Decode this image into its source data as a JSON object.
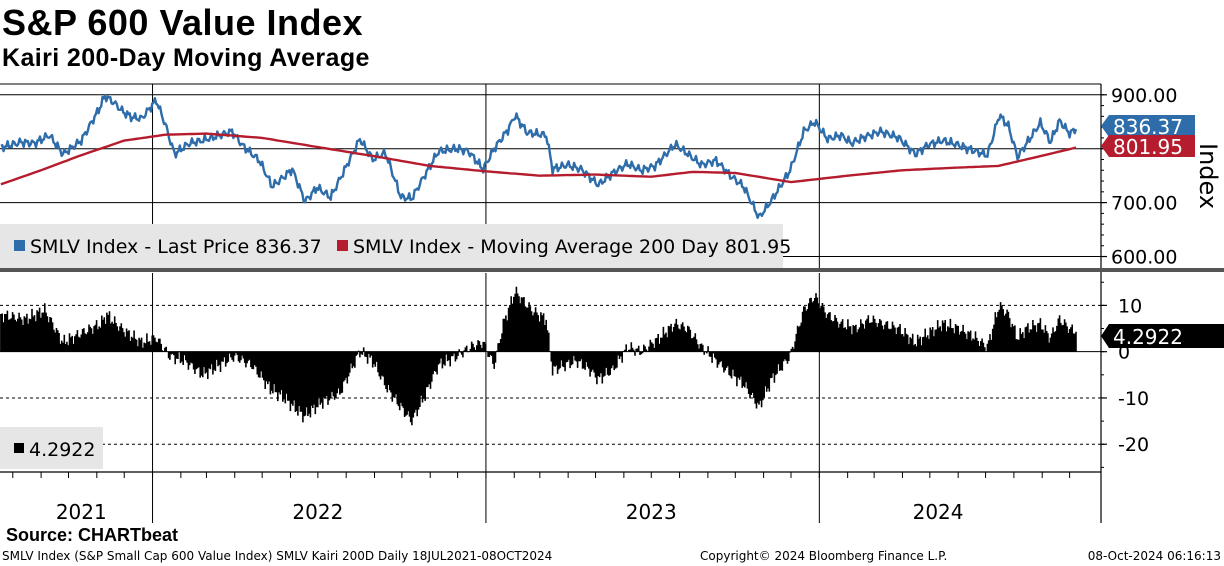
{
  "header": {
    "title": "S&P 600 Value Index",
    "subtitle": "Kairi 200-Day Moving Average"
  },
  "colors": {
    "price": "#2e6da9",
    "moving_average": "#b51c2e",
    "kairi": "#000000",
    "grid": "#000000",
    "legend_bg": "#e6e6e6"
  },
  "chart_data": [
    {
      "type": "line",
      "title": "",
      "ylabel": "Index",
      "ylim": [
        575,
        920
      ],
      "y_ticks": [
        600,
        700,
        800,
        900
      ],
      "y_tick_labels": [
        "600.00",
        "700.00",
        "800.00",
        "900.00"
      ],
      "x_range": [
        "2021-07-18",
        "2024-10-08"
      ],
      "grid": true,
      "legend_position": "bottom-left",
      "series": [
        {
          "name": "SMLV Index - Last Price 836.37",
          "role": "price",
          "last_label": "836.37",
          "points": [
            [
              "2021-07-19",
              802
            ],
            [
              "2021-08-10",
              812
            ],
            [
              "2021-08-25",
              810
            ],
            [
              "2021-09-10",
              825
            ],
            [
              "2021-09-25",
              790
            ],
            [
              "2021-10-15",
              815
            ],
            [
              "2021-11-03",
              872
            ],
            [
              "2021-11-10",
              898
            ],
            [
              "2021-11-20",
              885
            ],
            [
              "2021-11-30",
              868
            ],
            [
              "2021-12-10",
              858
            ],
            [
              "2021-12-20",
              856
            ],
            [
              "2022-01-05",
              890
            ],
            [
              "2022-01-15",
              845
            ],
            [
              "2022-01-25",
              790
            ],
            [
              "2022-02-10",
              810
            ],
            [
              "2022-02-24",
              815
            ],
            [
              "2022-03-10",
              822
            ],
            [
              "2022-03-29",
              832
            ],
            [
              "2022-04-10",
              805
            ],
            [
              "2022-04-28",
              778
            ],
            [
              "2022-05-12",
              730
            ],
            [
              "2022-05-25",
              748
            ],
            [
              "2022-06-03",
              762
            ],
            [
              "2022-06-17",
              702
            ],
            [
              "2022-06-30",
              728
            ],
            [
              "2022-07-15",
              710
            ],
            [
              "2022-07-30",
              760
            ],
            [
              "2022-08-16",
              818
            ],
            [
              "2022-08-30",
              780
            ],
            [
              "2022-09-13",
              792
            ],
            [
              "2022-09-30",
              710
            ],
            [
              "2022-10-12",
              708
            ],
            [
              "2022-10-25",
              748
            ],
            [
              "2022-11-10",
              795
            ],
            [
              "2022-11-30",
              800
            ],
            [
              "2022-12-13",
              795
            ],
            [
              "2022-12-29",
              762
            ],
            [
              "2023-01-10",
              800
            ],
            [
              "2023-01-25",
              835
            ],
            [
              "2023-02-02",
              862
            ],
            [
              "2023-02-15",
              830
            ],
            [
              "2023-03-08",
              825
            ],
            [
              "2023-03-15",
              762
            ],
            [
              "2023-03-31",
              770
            ],
            [
              "2023-04-15",
              762
            ],
            [
              "2023-05-04",
              733
            ],
            [
              "2023-05-20",
              755
            ],
            [
              "2023-06-05",
              772
            ],
            [
              "2023-06-20",
              760
            ],
            [
              "2023-07-05",
              768
            ],
            [
              "2023-07-27",
              808
            ],
            [
              "2023-08-10",
              790
            ],
            [
              "2023-08-25",
              770
            ],
            [
              "2023-09-10",
              778
            ],
            [
              "2023-09-27",
              748
            ],
            [
              "2023-10-10",
              730
            ],
            [
              "2023-10-27",
              672
            ],
            [
              "2023-11-10",
              705
            ],
            [
              "2023-11-30",
              760
            ],
            [
              "2023-12-15",
              832
            ],
            [
              "2023-12-27",
              850
            ],
            [
              "2024-01-10",
              818
            ],
            [
              "2024-01-25",
              825
            ],
            [
              "2024-02-05",
              810
            ],
            [
              "2024-02-20",
              822
            ],
            [
              "2024-03-08",
              832
            ],
            [
              "2024-03-28",
              820
            ],
            [
              "2024-04-15",
              790
            ],
            [
              "2024-04-30",
              808
            ],
            [
              "2024-05-15",
              815
            ],
            [
              "2024-05-30",
              808
            ],
            [
              "2024-06-15",
              798
            ],
            [
              "2024-07-03",
              788
            ],
            [
              "2024-07-16",
              862
            ],
            [
              "2024-07-26",
              842
            ],
            [
              "2024-08-05",
              785
            ],
            [
              "2024-08-15",
              810
            ],
            [
              "2024-08-30",
              848
            ],
            [
              "2024-09-10",
              812
            ],
            [
              "2024-09-20",
              852
            ],
            [
              "2024-10-01",
              828
            ],
            [
              "2024-10-08",
              836.37
            ]
          ]
        },
        {
          "name": "SMLV Index - Moving Average 200 Day 801.95",
          "role": "moving_average",
          "last_label": "801.95",
          "points": [
            [
              "2021-07-19",
              734
            ],
            [
              "2021-09-01",
              760
            ],
            [
              "2021-10-15",
              788
            ],
            [
              "2021-12-01",
              815
            ],
            [
              "2022-01-15",
              826
            ],
            [
              "2022-03-01",
              828
            ],
            [
              "2022-05-01",
              820
            ],
            [
              "2022-07-01",
              803
            ],
            [
              "2022-09-01",
              786
            ],
            [
              "2022-11-01",
              768
            ],
            [
              "2023-01-01",
              758
            ],
            [
              "2023-03-01",
              750
            ],
            [
              "2023-05-01",
              752
            ],
            [
              "2023-07-01",
              748
            ],
            [
              "2023-08-15",
              757
            ],
            [
              "2023-10-01",
              755
            ],
            [
              "2023-12-01",
              738
            ],
            [
              "2024-02-01",
              750
            ],
            [
              "2024-04-01",
              760
            ],
            [
              "2024-06-01",
              765
            ],
            [
              "2024-07-15",
              768
            ],
            [
              "2024-09-01",
              787
            ],
            [
              "2024-10-08",
              801.95
            ]
          ]
        }
      ]
    },
    {
      "type": "bar",
      "title": "",
      "ylabel": "",
      "ylim": [
        -26,
        17
      ],
      "y_ticks": [
        -20,
        -10,
        0,
        10
      ],
      "y_tick_labels": [
        "-20",
        "-10",
        "0",
        "10"
      ],
      "x_range": [
        "2021-07-18",
        "2024-10-08"
      ],
      "grid": true,
      "legend_position": "bottom-left",
      "series": [
        {
          "name": "4.2922",
          "role": "kairi",
          "last_label": "4.2922",
          "points": [
            [
              "2021-07-19",
              8
            ],
            [
              "2021-08-15",
              7
            ],
            [
              "2021-09-05",
              9
            ],
            [
              "2021-09-25",
              2
            ],
            [
              "2021-10-15",
              4
            ],
            [
              "2021-11-05",
              6
            ],
            [
              "2021-11-12",
              8
            ],
            [
              "2021-11-22",
              6
            ],
            [
              "2021-12-05",
              4
            ],
            [
              "2021-12-20",
              2
            ],
            [
              "2022-01-05",
              3
            ],
            [
              "2022-01-20",
              -1
            ],
            [
              "2022-02-05",
              -2
            ],
            [
              "2022-02-25",
              -5
            ],
            [
              "2022-03-15",
              -3
            ],
            [
              "2022-04-01",
              -1
            ],
            [
              "2022-04-20",
              -3
            ],
            [
              "2022-05-10",
              -8
            ],
            [
              "2022-05-25",
              -10
            ],
            [
              "2022-06-16",
              -14
            ],
            [
              "2022-07-05",
              -11
            ],
            [
              "2022-07-25",
              -9
            ],
            [
              "2022-08-16",
              0
            ],
            [
              "2022-08-30",
              -2
            ],
            [
              "2022-09-15",
              -8
            ],
            [
              "2022-09-30",
              -12
            ],
            [
              "2022-10-12",
              -15
            ],
            [
              "2022-10-25",
              -10
            ],
            [
              "2022-11-10",
              -3
            ],
            [
              "2022-11-30",
              -1
            ],
            [
              "2022-12-15",
              1
            ],
            [
              "2022-12-29",
              2
            ],
            [
              "2023-01-10",
              -3
            ],
            [
              "2023-01-20",
              6
            ],
            [
              "2023-02-02",
              13
            ],
            [
              "2023-02-20",
              9
            ],
            [
              "2023-03-08",
              7
            ],
            [
              "2023-03-15",
              -4
            ],
            [
              "2023-04-10",
              -2
            ],
            [
              "2023-04-25",
              -4
            ],
            [
              "2023-05-04",
              -6
            ],
            [
              "2023-05-20",
              -4
            ],
            [
              "2023-06-05",
              1
            ],
            [
              "2023-06-20",
              0
            ],
            [
              "2023-07-10",
              3
            ],
            [
              "2023-07-27",
              6
            ],
            [
              "2023-08-10",
              5
            ],
            [
              "2023-08-25",
              1
            ],
            [
              "2023-09-10",
              -2
            ],
            [
              "2023-09-27",
              -5
            ],
            [
              "2023-10-10",
              -7
            ],
            [
              "2023-10-27",
              -12
            ],
            [
              "2023-11-10",
              -6
            ],
            [
              "2023-11-30",
              -1
            ],
            [
              "2023-12-15",
              9
            ],
            [
              "2023-12-27",
              12
            ],
            [
              "2024-01-10",
              8
            ],
            [
              "2024-01-25",
              6
            ],
            [
              "2024-02-10",
              5
            ],
            [
              "2024-02-25",
              7
            ],
            [
              "2024-03-10",
              6
            ],
            [
              "2024-03-28",
              5
            ],
            [
              "2024-04-15",
              2
            ],
            [
              "2024-04-30",
              4
            ],
            [
              "2024-05-15",
              6
            ],
            [
              "2024-06-01",
              5
            ],
            [
              "2024-06-20",
              3
            ],
            [
              "2024-07-03",
              1
            ],
            [
              "2024-07-16",
              10
            ],
            [
              "2024-07-26",
              8
            ],
            [
              "2024-08-05",
              3
            ],
            [
              "2024-08-15",
              5
            ],
            [
              "2024-08-30",
              6
            ],
            [
              "2024-09-10",
              3
            ],
            [
              "2024-09-20",
              7
            ],
            [
              "2024-10-01",
              5
            ],
            [
              "2024-10-08",
              4.2922
            ]
          ]
        }
      ]
    }
  ],
  "x_axis": {
    "year_labels": [
      {
        "label": "2021",
        "center": "2021-10-15"
      },
      {
        "label": "2022",
        "center": "2022-07-01"
      },
      {
        "label": "2023",
        "center": "2023-07-01"
      },
      {
        "label": "2024",
        "center": "2024-05-10"
      }
    ],
    "year_boundaries": [
      "2022-01-01",
      "2023-01-01",
      "2024-01-01"
    ]
  },
  "footer": {
    "source": "Source: CHARTbeat",
    "left": "SMLV Index (S&P Small Cap 600 Value Index) SMLV Kairi 200D  Daily 18JUL2021-08OCT2024",
    "center": "Copyright© 2024 Bloomberg Finance L.P.",
    "right": "08-Oct-2024 06:16:13"
  }
}
